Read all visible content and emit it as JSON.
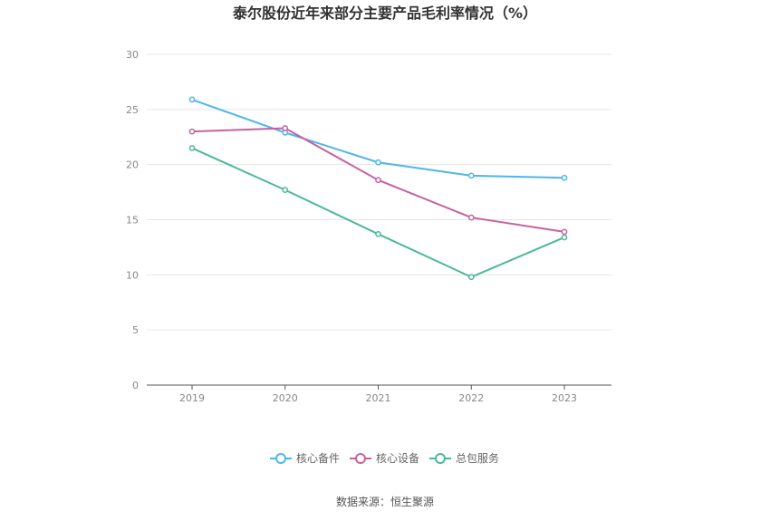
{
  "chart_data": {
    "type": "line",
    "title": "泰尔股份近年来部分主要产品毛利率情况（%）",
    "categories": [
      "2019",
      "2020",
      "2021",
      "2022",
      "2023"
    ],
    "yticks": [
      "0",
      "5",
      "10",
      "15",
      "20",
      "25",
      "30"
    ],
    "ylim": [
      0,
      30
    ],
    "grid": true,
    "legend_position": "bottom",
    "series": [
      {
        "name": "核心备件",
        "color": "#4db6ec",
        "values": [
          25.9,
          22.9,
          20.2,
          19.0,
          18.8
        ]
      },
      {
        "name": "核心设备",
        "color": "#c7629f",
        "values": [
          23.0,
          23.3,
          18.6,
          15.2,
          13.9
        ]
      },
      {
        "name": "总包服务",
        "color": "#4cb89a",
        "values": [
          21.5,
          17.7,
          13.7,
          9.8,
          13.4
        ]
      }
    ]
  },
  "source_text": "数据来源：恒生聚源"
}
